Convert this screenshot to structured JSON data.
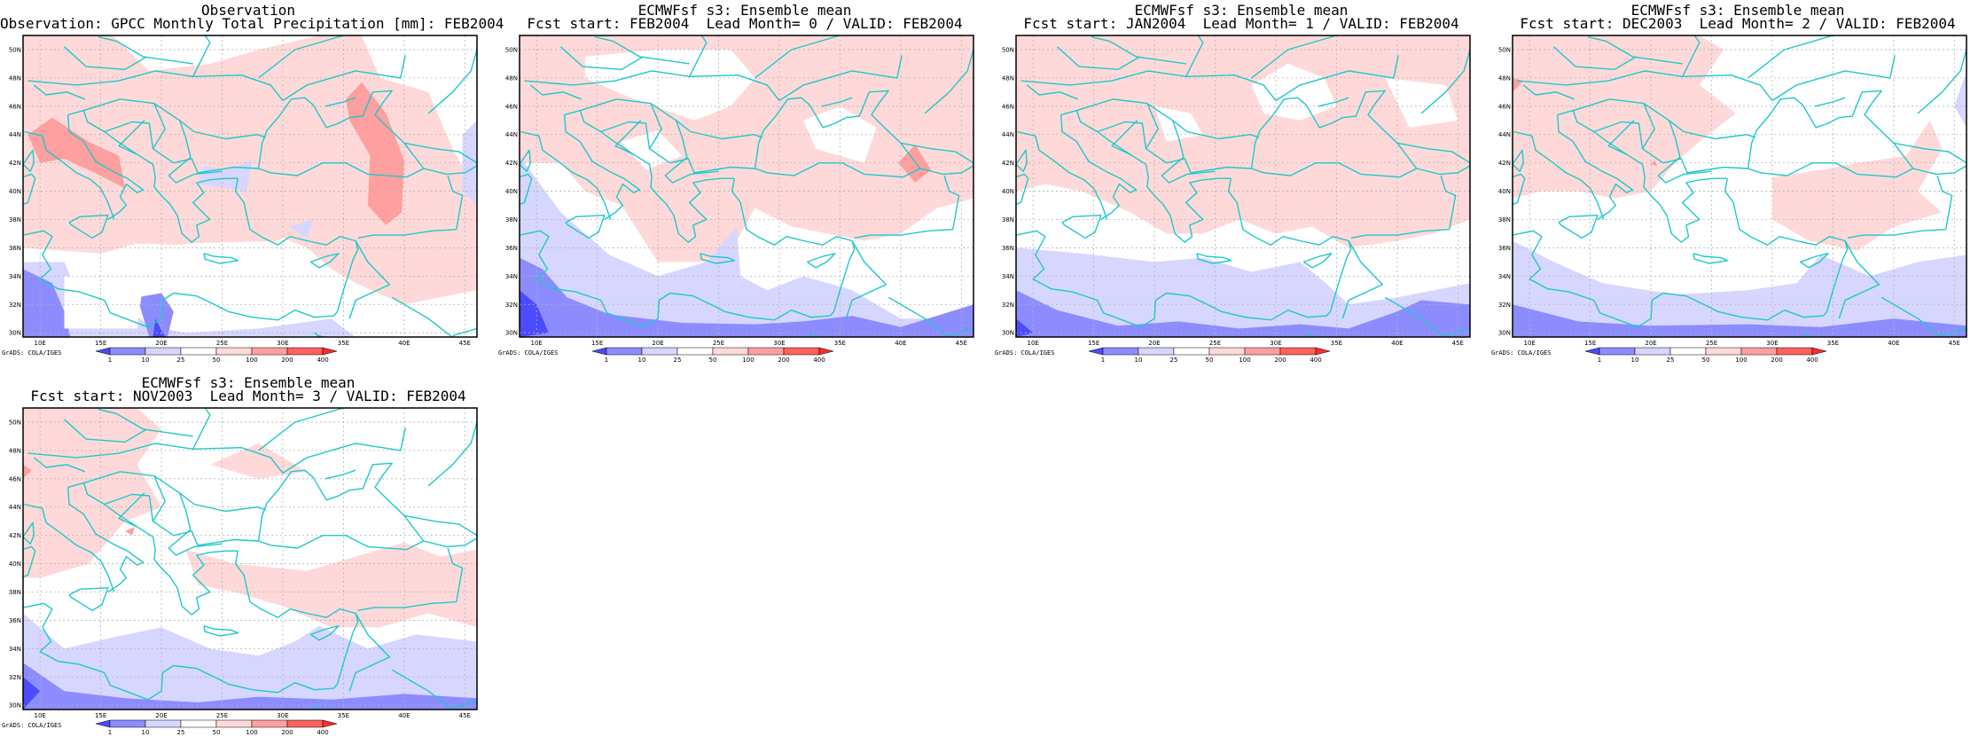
{
  "colors": {
    "coast": "#1fc8c8",
    "frame": "#000000",
    "grid": "#b4b4b4",
    "levels": {
      "lt1": "#4b4bff",
      "1_10": "#8c8cff",
      "10_25": "#d6d6ff",
      "25_50": "#ffffff",
      "50_100": "#ffd9d9",
      "100_200": "#ff9f9f",
      "200_400": "#ff6060",
      "gt400": "#ff2b2b"
    }
  },
  "axes": {
    "lon_labels": [
      "10E",
      "15E",
      "20E",
      "25E",
      "30E",
      "35E",
      "40E",
      "45E"
    ],
    "lat_labels": [
      "30N",
      "32N",
      "34N",
      "36N",
      "38N",
      "40N",
      "42N",
      "44N",
      "46N",
      "48N",
      "50N"
    ]
  },
  "colorbar": {
    "ticks": [
      "1",
      "10",
      "25",
      "50",
      "100",
      "200",
      "400"
    ]
  },
  "credit": "GrADS: COLA/IGES",
  "panels": [
    {
      "title1": "Observation",
      "title2": "Observation: GPCC Monthly Total Precipitation [mm]: FEB2004"
    },
    {
      "title1": "ECMWFsf s3: Ensemble mean",
      "title2": "Fcst start: FEB2004  Lead Month= 0 / VALID: FEB2004"
    },
    {
      "title1": "ECMWFsf s3: Ensemble mean",
      "title2": "Fcst start: JAN2004  Lead Month= 1 / VALID: FEB2004"
    },
    {
      "title1": "ECMWFsf s3: Ensemble mean",
      "title2": "Fcst start: DEC2003  Lead Month= 2 / VALID: FEB2004"
    },
    {
      "title1": "ECMWFsf s3: Ensemble mean",
      "title2": "Fcst start: NOV2003  Lead Month= 3 / VALID: FEB2004"
    }
  ]
}
